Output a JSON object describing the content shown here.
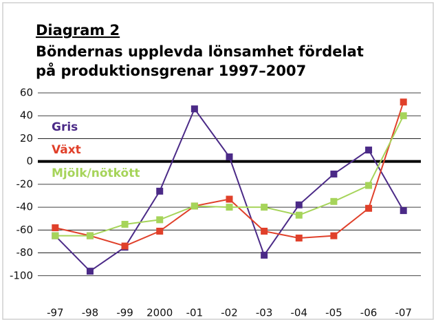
{
  "chart_data": {
    "type": "line",
    "title": "Diagram 2",
    "subtitle": [
      "Böndernas upplevda lönsamhet fördelat",
      "på produktionsgrenar 1997–2007"
    ],
    "categories": [
      "-97",
      "-98",
      "-99",
      "2000",
      "-01",
      "-02",
      "-03",
      "-04",
      "-05",
      "-06",
      "-07"
    ],
    "series": [
      {
        "name": "Gris",
        "color": "#4b2a87",
        "values": [
          -65,
          -96,
          -75,
          -26,
          46,
          4,
          -82,
          -38,
          -11,
          10,
          -43
        ]
      },
      {
        "name": "Växt",
        "color": "#e0402a",
        "values": [
          -58,
          -65,
          -74,
          -61,
          -39,
          -33,
          -61,
          -67,
          -65,
          -41,
          52
        ]
      },
      {
        "name": "Mjölk/nötkött",
        "color": "#a6d45a",
        "values": [
          -65,
          -65,
          -55,
          -51,
          -39,
          -40,
          -40,
          -47,
          -35,
          -21,
          40
        ]
      }
    ],
    "ylim": [
      -120,
      60
    ],
    "yticks": [
      -100,
      -80,
      -60,
      -40,
      -20,
      0,
      20,
      40,
      60
    ],
    "grid": true,
    "zero_line": true
  }
}
